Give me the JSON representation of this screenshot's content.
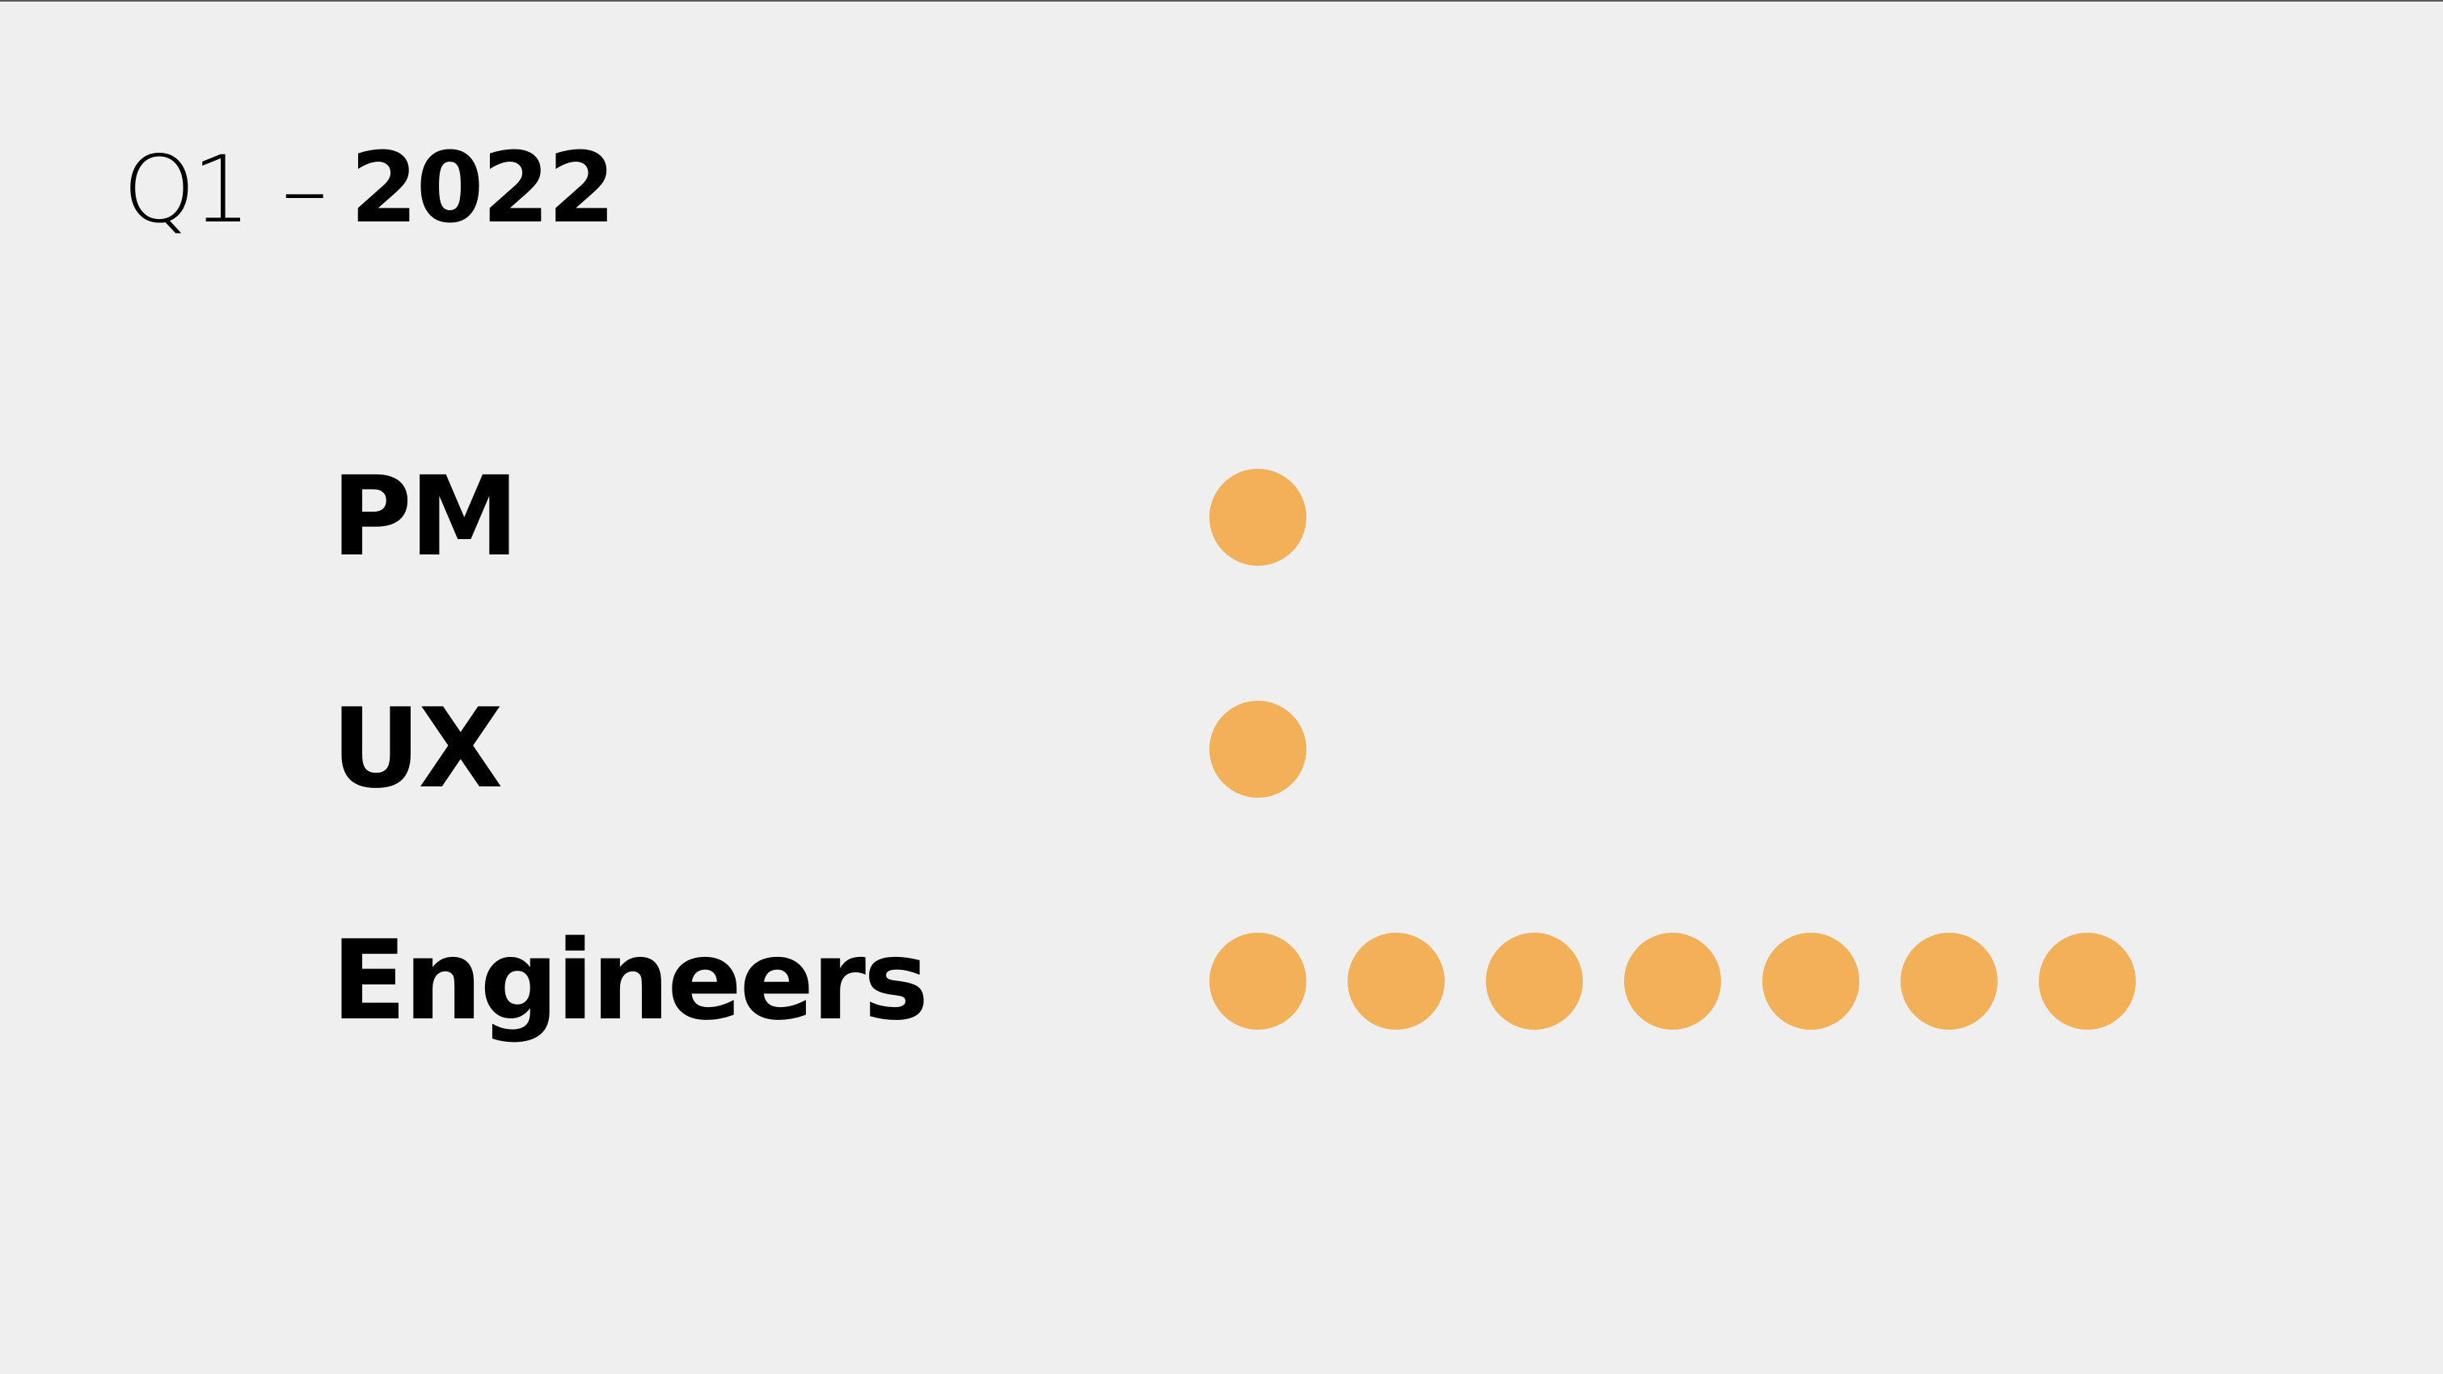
{
  "header": {
    "quarter": "Q1",
    "separator": "–",
    "year": "2022"
  },
  "rows": [
    {
      "label": "PM",
      "dots": 1
    },
    {
      "label": "UX",
      "dots": 1
    },
    {
      "label": "Engineers",
      "dots": 7
    }
  ],
  "colors": {
    "background": "#efefef",
    "dot": "#f2b058",
    "text": "#000000"
  }
}
